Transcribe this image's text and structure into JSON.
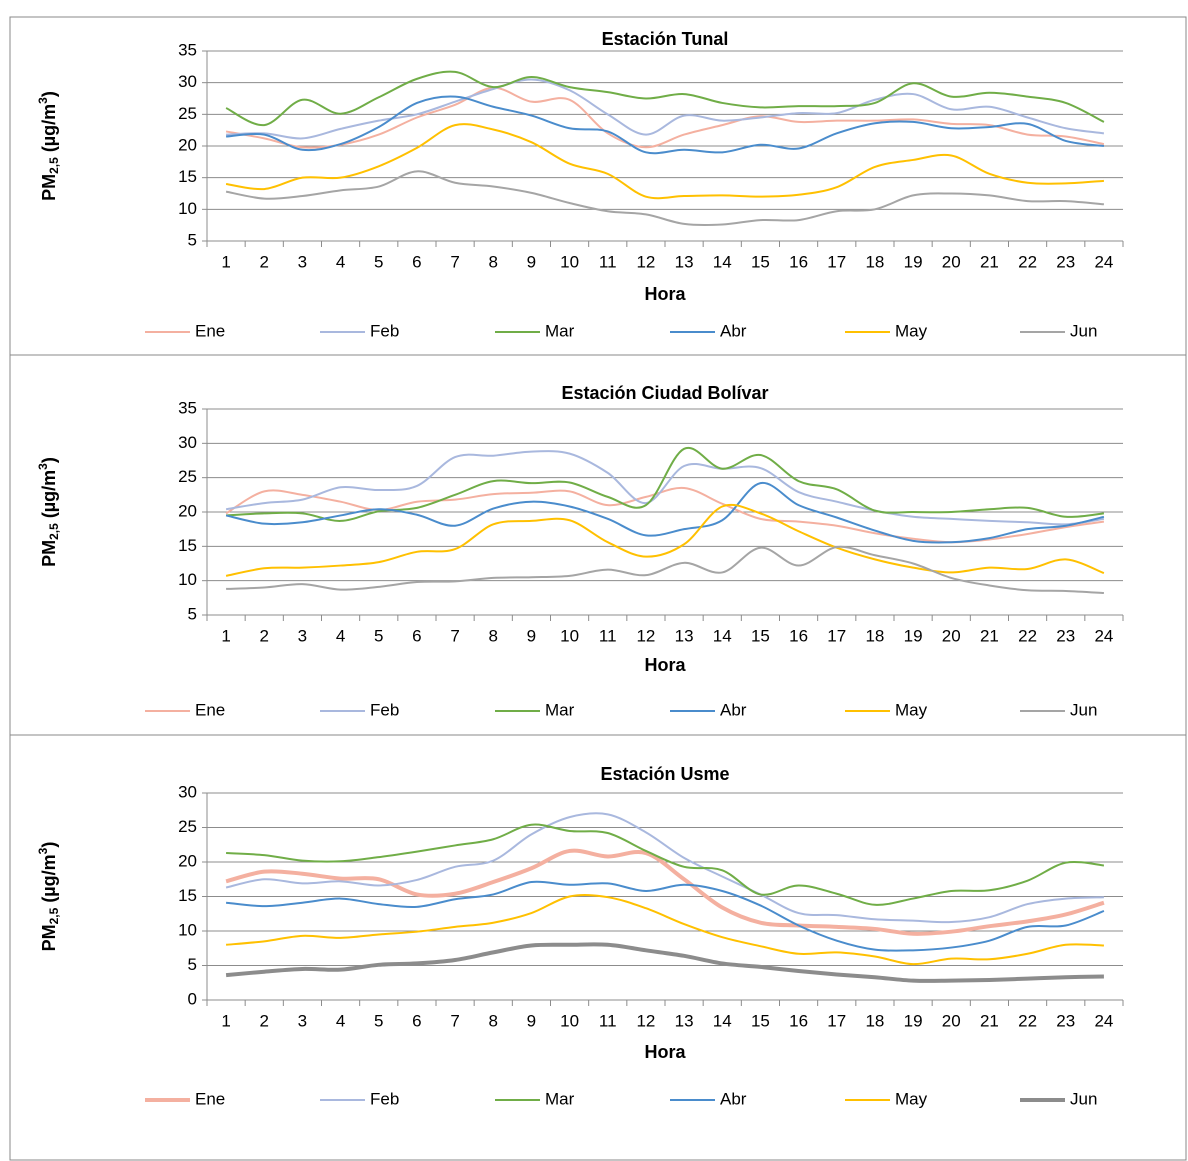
{
  "chart_data": [
    {
      "type": "line",
      "title": "Estación Tunal",
      "x_label": "Hora",
      "y_label": [
        "PM",
        "2,5",
        " (µg/m",
        "3",
        ")"
      ],
      "categories": [
        "1",
        "2",
        "3",
        "4",
        "5",
        "6",
        "7",
        "8",
        "9",
        "10",
        "11",
        "12",
        "13",
        "14",
        "15",
        "16",
        "17",
        "18",
        "19",
        "20",
        "21",
        "22",
        "23",
        "24"
      ],
      "ylim": [
        5,
        35
      ],
      "yticks": [
        5,
        10,
        15,
        20,
        25,
        30,
        35
      ],
      "grid": true,
      "series": [
        {
          "name": "Ene",
          "color": "#f4b0a0",
          "width": 2,
          "values": [
            22.3,
            21.2,
            19.8,
            20.2,
            21.8,
            24.5,
            26.5,
            29.2,
            27,
            27.3,
            22,
            19.8,
            21.8,
            23.3,
            24.7,
            23.8,
            24,
            24,
            24.2,
            23.5,
            23.3,
            21.8,
            21.5,
            20.3
          ]
        },
        {
          "name": "Feb",
          "color": "#a9b8de",
          "width": 2,
          "values": [
            21.8,
            22,
            21.2,
            22.7,
            24,
            25,
            27,
            29,
            30.5,
            28.8,
            25,
            21.8,
            24.8,
            24,
            24.5,
            25.2,
            25.2,
            27.3,
            28.2,
            25.8,
            26.2,
            24.5,
            22.8,
            22
          ]
        },
        {
          "name": "Mar",
          "color": "#70ad47",
          "width": 2,
          "values": [
            26,
            23.3,
            27.3,
            25.1,
            27.7,
            30.6,
            31.7,
            29.3,
            30.9,
            29.3,
            28.5,
            27.5,
            28.2,
            26.8,
            26.1,
            26.3,
            26.3,
            26.8,
            29.9,
            27.8,
            28.4,
            27.8,
            26.8,
            23.8
          ]
        },
        {
          "name": "Abr",
          "color": "#4a8ccc",
          "width": 2,
          "values": [
            21.5,
            21.8,
            19.4,
            20.3,
            23,
            26.8,
            27.8,
            26.2,
            24.8,
            22.8,
            22.3,
            19,
            19.4,
            19,
            20.2,
            19.6,
            22,
            23.6,
            23.8,
            22.8,
            23,
            23.5,
            20.8,
            20
          ]
        },
        {
          "name": "May",
          "color": "#ffc000",
          "width": 2,
          "values": [
            14,
            13.2,
            15,
            15,
            16.8,
            19.7,
            23.3,
            22.6,
            20.6,
            17.2,
            15.6,
            12,
            12.1,
            12.2,
            12,
            12.3,
            13.5,
            16.7,
            17.8,
            18.5,
            15.6,
            14.2,
            14.1,
            14.5
          ]
        },
        {
          "name": "Jun",
          "color": "#a5a5a5",
          "width": 2,
          "values": [
            12.8,
            11.7,
            12.1,
            13,
            13.6,
            16,
            14.2,
            13.6,
            12.6,
            11,
            9.7,
            9.2,
            7.7,
            7.6,
            8.3,
            8.3,
            9.7,
            10,
            12.2,
            12.5,
            12.2,
            11.3,
            11.3,
            10.8
          ]
        }
      ]
    },
    {
      "type": "line",
      "title": "Estación Ciudad Bolívar",
      "x_label": "Hora",
      "y_label": [
        "PM",
        "2,5",
        " (µg/m",
        "3",
        ")"
      ],
      "categories": [
        "1",
        "2",
        "3",
        "4",
        "5",
        "6",
        "7",
        "8",
        "9",
        "10",
        "11",
        "12",
        "13",
        "14",
        "15",
        "16",
        "17",
        "18",
        "19",
        "20",
        "21",
        "22",
        "23",
        "24"
      ],
      "ylim": [
        5,
        35
      ],
      "yticks": [
        5,
        10,
        15,
        20,
        25,
        30,
        35
      ],
      "grid": true,
      "series": [
        {
          "name": "Ene",
          "color": "#f4b0a0",
          "width": 2,
          "values": [
            19.8,
            23,
            22.5,
            21.5,
            20.3,
            21.5,
            21.8,
            22.6,
            22.8,
            23,
            21,
            22.2,
            23.5,
            21.2,
            19,
            18.6,
            18,
            16.9,
            16.1,
            15.6,
            16,
            16.8,
            17.8,
            18.6
          ]
        },
        {
          "name": "Feb",
          "color": "#a9b8de",
          "width": 2,
          "values": [
            20.4,
            21.3,
            21.8,
            23.6,
            23.2,
            23.8,
            28,
            28.2,
            28.8,
            28.5,
            25.7,
            21.3,
            26.7,
            26.3,
            26.4,
            22.9,
            21.5,
            20.2,
            19.3,
            19,
            18.7,
            18.5,
            18.2,
            19
          ]
        },
        {
          "name": "Mar",
          "color": "#70ad47",
          "width": 2,
          "values": [
            19.5,
            19.8,
            19.8,
            18.7,
            20.1,
            20.6,
            22.5,
            24.5,
            24.2,
            24.3,
            22.2,
            21,
            29.2,
            26.3,
            28.3,
            24.5,
            23.3,
            20.2,
            20,
            20,
            20.4,
            20.6,
            19.3,
            19.8
          ]
        },
        {
          "name": "Abr",
          "color": "#4a8ccc",
          "width": 2,
          "values": [
            19.5,
            18.3,
            18.5,
            19.5,
            20.4,
            19.6,
            18,
            20.5,
            21.5,
            20.8,
            19,
            16.6,
            17.5,
            18.8,
            24.2,
            21,
            19.2,
            17.3,
            15.8,
            15.6,
            16.2,
            17.5,
            18,
            19.3
          ]
        },
        {
          "name": "May",
          "color": "#ffc000",
          "width": 2,
          "values": [
            10.7,
            11.8,
            11.9,
            12.2,
            12.7,
            14.2,
            14.6,
            18.2,
            18.7,
            18.8,
            15.6,
            13.5,
            15.3,
            20.8,
            19.8,
            17.2,
            14.8,
            13.1,
            11.9,
            11.2,
            11.9,
            11.7,
            13.1,
            11.1
          ]
        },
        {
          "name": "Jun",
          "color": "#a5a5a5",
          "width": 2,
          "values": [
            8.8,
            9,
            9.5,
            8.7,
            9.1,
            9.8,
            9.9,
            10.4,
            10.5,
            10.7,
            11.6,
            10.8,
            12.6,
            11.2,
            14.8,
            12.2,
            14.9,
            13.7,
            12.5,
            10.4,
            9.3,
            8.6,
            8.5,
            8.2
          ]
        }
      ]
    },
    {
      "type": "line",
      "title": "Estación Usme",
      "x_label": "Hora",
      "y_label": [
        "PM",
        "2,5",
        " (µg/m",
        "3",
        ")"
      ],
      "categories": [
        "1",
        "2",
        "3",
        "4",
        "5",
        "6",
        "7",
        "8",
        "9",
        "10",
        "11",
        "12",
        "13",
        "14",
        "15",
        "16",
        "17",
        "18",
        "19",
        "20",
        "21",
        "22",
        "23",
        "24"
      ],
      "ylim": [
        0,
        30
      ],
      "yticks": [
        0,
        5,
        10,
        15,
        20,
        25,
        30
      ],
      "grid": true,
      "series": [
        {
          "name": "Ene",
          "color": "#f4b0a0",
          "width": 4,
          "values": [
            17.2,
            18.6,
            18.3,
            17.6,
            17.5,
            15.3,
            15.4,
            17.1,
            19.1,
            21.6,
            20.8,
            21.3,
            17.5,
            13.4,
            11.2,
            10.8,
            10.6,
            10.3,
            9.6,
            9.9,
            10.7,
            11.4,
            12.4,
            14.1
          ]
        },
        {
          "name": "Feb",
          "color": "#a9b8de",
          "width": 2,
          "values": [
            16.3,
            17.5,
            16.9,
            17.2,
            16.6,
            17.4,
            19.3,
            20.2,
            24,
            26.5,
            26.9,
            24.3,
            20.6,
            17.9,
            15.3,
            12.6,
            12.3,
            11.7,
            11.5,
            11.3,
            12,
            13.9,
            14.7,
            14.9
          ]
        },
        {
          "name": "Mar",
          "color": "#70ad47",
          "width": 2,
          "values": [
            21.3,
            21,
            20.2,
            20.1,
            20.7,
            21.5,
            22.4,
            23.3,
            25.4,
            24.5,
            24.2,
            21.6,
            19.3,
            18.8,
            15.3,
            16.6,
            15.4,
            13.8,
            14.7,
            15.8,
            15.9,
            17.3,
            19.9,
            19.5
          ]
        },
        {
          "name": "Abr",
          "color": "#4a8ccc",
          "width": 2,
          "values": [
            14.1,
            13.6,
            14.1,
            14.7,
            13.9,
            13.5,
            14.6,
            15.3,
            17.1,
            16.7,
            16.9,
            15.8,
            16.7,
            15.8,
            13.7,
            10.8,
            8.6,
            7.3,
            7.2,
            7.6,
            8.6,
            10.6,
            10.8,
            12.9
          ]
        },
        {
          "name": "May",
          "color": "#ffc000",
          "width": 2,
          "values": [
            8,
            8.5,
            9.3,
            9,
            9.5,
            9.9,
            10.6,
            11.2,
            12.6,
            15,
            14.9,
            13.3,
            11,
            9.1,
            7.8,
            6.7,
            6.9,
            6.3,
            5.2,
            6,
            5.9,
            6.7,
            8,
            7.9
          ]
        },
        {
          "name": "Jun",
          "color": "#8c8c8c",
          "width": 4,
          "values": [
            3.6,
            4.1,
            4.5,
            4.4,
            5.1,
            5.3,
            5.8,
            6.9,
            7.9,
            8,
            8,
            7.2,
            6.4,
            5.3,
            4.8,
            4.2,
            3.7,
            3.3,
            2.8,
            2.8,
            2.9,
            3.1,
            3.3,
            3.4
          ]
        }
      ]
    }
  ]
}
